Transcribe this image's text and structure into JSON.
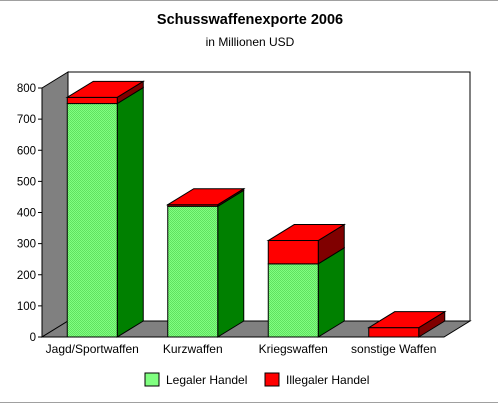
{
  "chart_data": {
    "type": "bar",
    "stacked": true,
    "three_d": true,
    "title": "Schusswaffenexporte 2006",
    "subtitle": "in Millionen USD",
    "categories": [
      "Jagd/Sportwaffen",
      "Kurzwaffen",
      "Kriegswaffen",
      "sonstige Waffen"
    ],
    "series": [
      {
        "name": "Legaler Handel",
        "values": [
          750,
          420,
          235,
          0
        ],
        "color": "#80ff80",
        "side_color": "#008000"
      },
      {
        "name": "Illegaler Handel",
        "values": [
          20,
          5,
          75,
          30
        ],
        "color": "#ff0000",
        "side_color": "#800000"
      }
    ],
    "ylim": [
      0,
      800
    ],
    "yticks": [
      0,
      100,
      200,
      300,
      400,
      500,
      600,
      700,
      800
    ],
    "grid": false,
    "legend_position": "bottom"
  }
}
